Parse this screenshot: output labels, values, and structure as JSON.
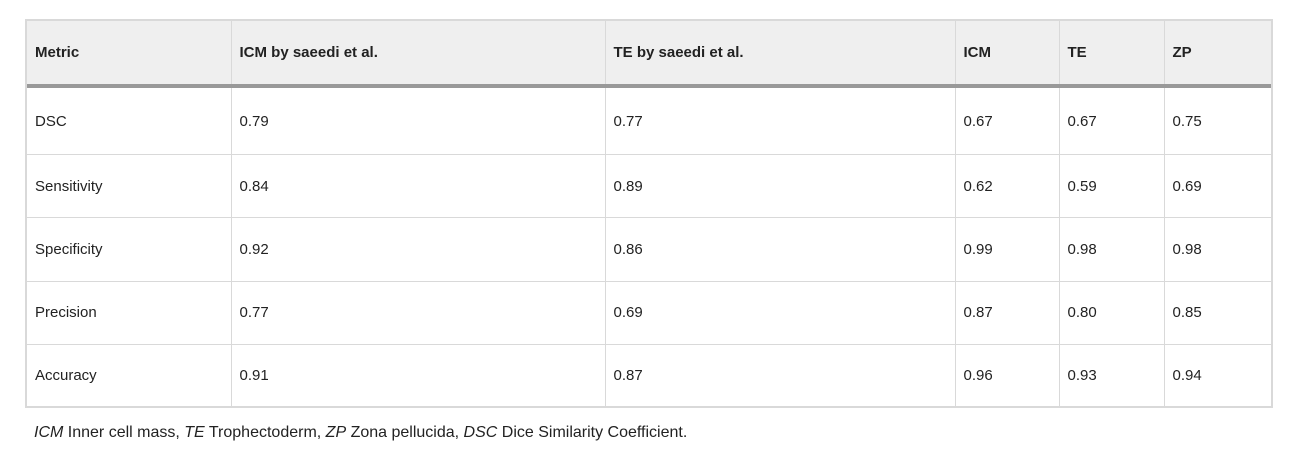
{
  "table": {
    "headers": [
      "Metric",
      "ICM by saeedi et al.",
      "TE by saeedi et al.",
      "ICM",
      "TE",
      "ZP"
    ],
    "rows": [
      [
        "DSC",
        "0.79",
        "0.77",
        "0.67",
        "0.67",
        "0.75"
      ],
      [
        "Sensitivity",
        "0.84",
        "0.89",
        "0.62",
        "0.59",
        "0.69"
      ],
      [
        "Specificity",
        "0.92",
        "0.86",
        "0.99",
        "0.98",
        "0.98"
      ],
      [
        "Precision",
        "0.77",
        "0.69",
        "0.87",
        "0.80",
        "0.85"
      ],
      [
        "Accuracy",
        "0.91",
        "0.87",
        "0.96",
        "0.93",
        "0.94"
      ]
    ]
  },
  "footnote": [
    {
      "abbr": "ICM",
      "text": " Inner cell mass, "
    },
    {
      "abbr": "TE",
      "text": " Trophectoderm, "
    },
    {
      "abbr": "ZP",
      "text": " Zona pellucida, "
    },
    {
      "abbr": "DSC",
      "text": " Dice Similarity Coefficient."
    }
  ]
}
